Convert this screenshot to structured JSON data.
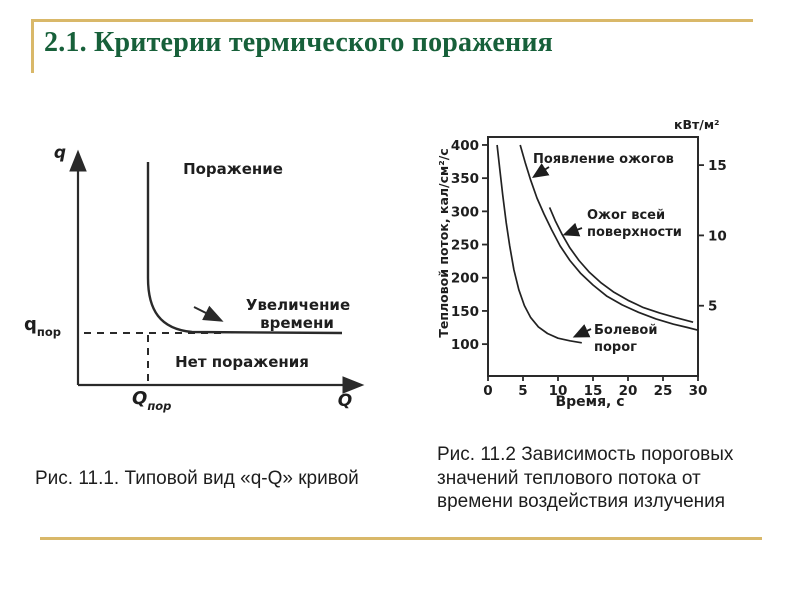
{
  "slide": {
    "title": "2.1. Критерии термического поражения",
    "title_color": "#17603a",
    "accent_color": "#d9b869"
  },
  "fig1": {
    "caption": "Рис. 11.1. Типовой вид «q-Q» кривой",
    "labels": {
      "axis_y": "q",
      "axis_x": "Q",
      "damage": "Поражение",
      "no_damage": "Нет поражения",
      "time_increase_1": "Увеличение",
      "time_increase_2": "времени",
      "q_threshold_base": "q",
      "q_threshold_sub": "пор",
      "Q_threshold_base": "Q",
      "Q_threshold_sub": "пор"
    }
  },
  "fig2": {
    "caption": "Рис. 11.2 Зависимость пороговых значений теплового потока от времени воздействия излучения",
    "curve_labels": {
      "burns_onset": "Появление ожогов",
      "full_burn_1": "Ожог всей",
      "full_burn_2": "поверхности",
      "pain_1": "Болевой",
      "pain_2": "порог"
    }
  },
  "chart_data": {
    "type": "line",
    "xlabel": "Время, с",
    "ylabel": "Тепловой поток, кал/см²/с",
    "ylabel_right": "кВт/м²",
    "xlim": [
      0,
      30
    ],
    "ylim": [
      52,
      412
    ],
    "ylim_right": [
      0,
      17
    ],
    "x_ticks": [
      0,
      5,
      10,
      15,
      20,
      25,
      30
    ],
    "y_ticks": [
      100,
      150,
      200,
      250,
      300,
      350,
      400
    ],
    "y_ticks_right": [
      5,
      10,
      15
    ],
    "grid": false,
    "legend": "inline-annotations",
    "series": [
      {
        "name": "Болевой порог",
        "points": [
          [
            1.3,
            400
          ],
          [
            1.7,
            362
          ],
          [
            2.1,
            325
          ],
          [
            2.6,
            283
          ],
          [
            3.1,
            248
          ],
          [
            3.7,
            212
          ],
          [
            4.4,
            182
          ],
          [
            5.2,
            158
          ],
          [
            6.1,
            140
          ],
          [
            7.2,
            126
          ],
          [
            8.5,
            116
          ],
          [
            10,
            109
          ],
          [
            11.7,
            105
          ],
          [
            13.4,
            102
          ]
        ]
      },
      {
        "name": "Появление ожогов",
        "points": [
          [
            4.6,
            400
          ],
          [
            5.3,
            374
          ],
          [
            6.1,
            347
          ],
          [
            7,
            320
          ],
          [
            8,
            296
          ],
          [
            9.1,
            272
          ],
          [
            10.3,
            248
          ],
          [
            11.7,
            226
          ],
          [
            13.2,
            207
          ],
          [
            15,
            189
          ],
          [
            17,
            172
          ],
          [
            19.2,
            159
          ],
          [
            21.5,
            148
          ],
          [
            24,
            138
          ],
          [
            26.5,
            130
          ],
          [
            28.5,
            125
          ],
          [
            30,
            121
          ]
        ]
      },
      {
        "name": "Ожог всей поверхности",
        "points": [
          [
            8.8,
            306
          ],
          [
            9.6,
            286
          ],
          [
            10.6,
            265
          ],
          [
            11.7,
            245
          ],
          [
            13,
            226
          ],
          [
            14.5,
            208
          ],
          [
            16.2,
            192
          ],
          [
            18,
            178
          ],
          [
            20,
            166
          ],
          [
            22.2,
            155
          ],
          [
            24.5,
            147
          ],
          [
            26.8,
            140
          ],
          [
            29.3,
            133
          ]
        ]
      }
    ]
  }
}
